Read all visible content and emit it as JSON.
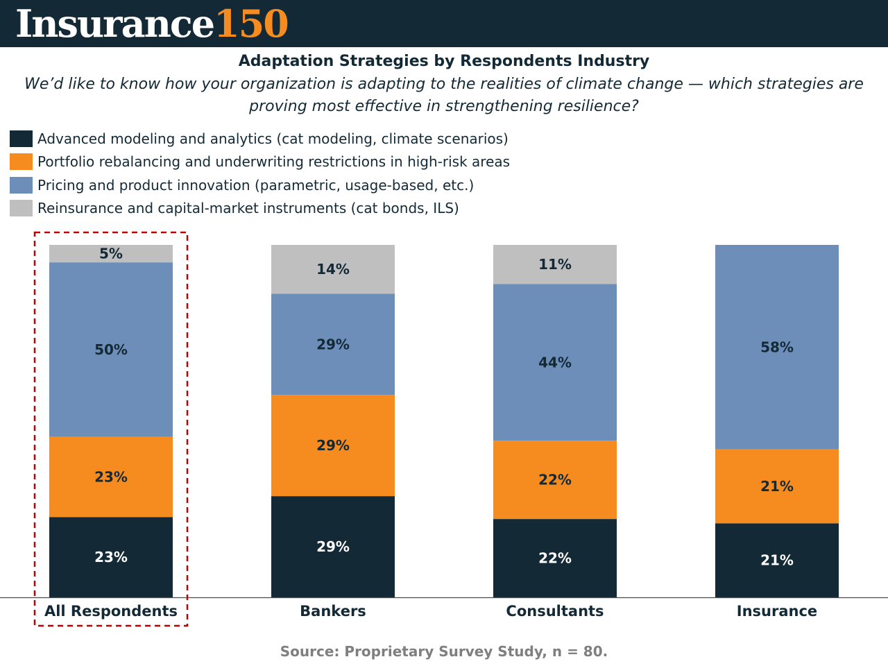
{
  "header": {
    "logo_word": "Insurance",
    "logo_number": "150"
  },
  "title": "Adaptation Strategies by Respondents Industry",
  "subtitle": "We’d like to know how your organization is adapting to the realities of climate change — which strategies are proving most effective in strengthening resilience?",
  "source": "Source: Proprietary Survey Study, n = 80.",
  "highlight": "All Respondents",
  "colors": {
    "header_bg": "#132a36",
    "logo_accent": "#f68b1f",
    "highlight_border": "#c00000"
  },
  "chart_data": {
    "type": "bar",
    "stacked": true,
    "percent_stacked": true,
    "categories": [
      "All Respondents",
      "Bankers",
      "Consultants",
      "Insurance"
    ],
    "series": [
      {
        "name": "Advanced modeling and analytics (cat modeling, climate scenarios)",
        "color": "#132a36",
        "label_color": "#ffffff",
        "values": [
          23,
          29,
          22,
          21
        ],
        "labels": [
          "23%",
          "29%",
          "22%",
          "21%"
        ]
      },
      {
        "name": "Portfolio rebalancing and underwriting restrictions in high-risk areas",
        "color": "#f68b1f",
        "label_color": "#132a36",
        "values": [
          23,
          29,
          22,
          21
        ],
        "labels": [
          "23%",
          "29%",
          "22%",
          "21%"
        ]
      },
      {
        "name": "Pricing and product innovation (parametric, usage-based, etc.)",
        "color": "#6e8eba",
        "label_color": "#132a36",
        "values": [
          50,
          29,
          44,
          58
        ],
        "labels": [
          "50%",
          "29%",
          "44%",
          "58%"
        ]
      },
      {
        "name": "Reinsurance and capital-market instruments (cat bonds, ILS)",
        "color": "#bfbfbf",
        "label_color": "#132a36",
        "values": [
          5,
          14,
          11,
          0
        ],
        "labels": [
          "5%",
          "14%",
          "11%",
          ""
        ]
      }
    ],
    "xlabel": "",
    "ylabel": "",
    "ylim": [
      0,
      100
    ],
    "grid": false,
    "legend_position": "top-left"
  }
}
